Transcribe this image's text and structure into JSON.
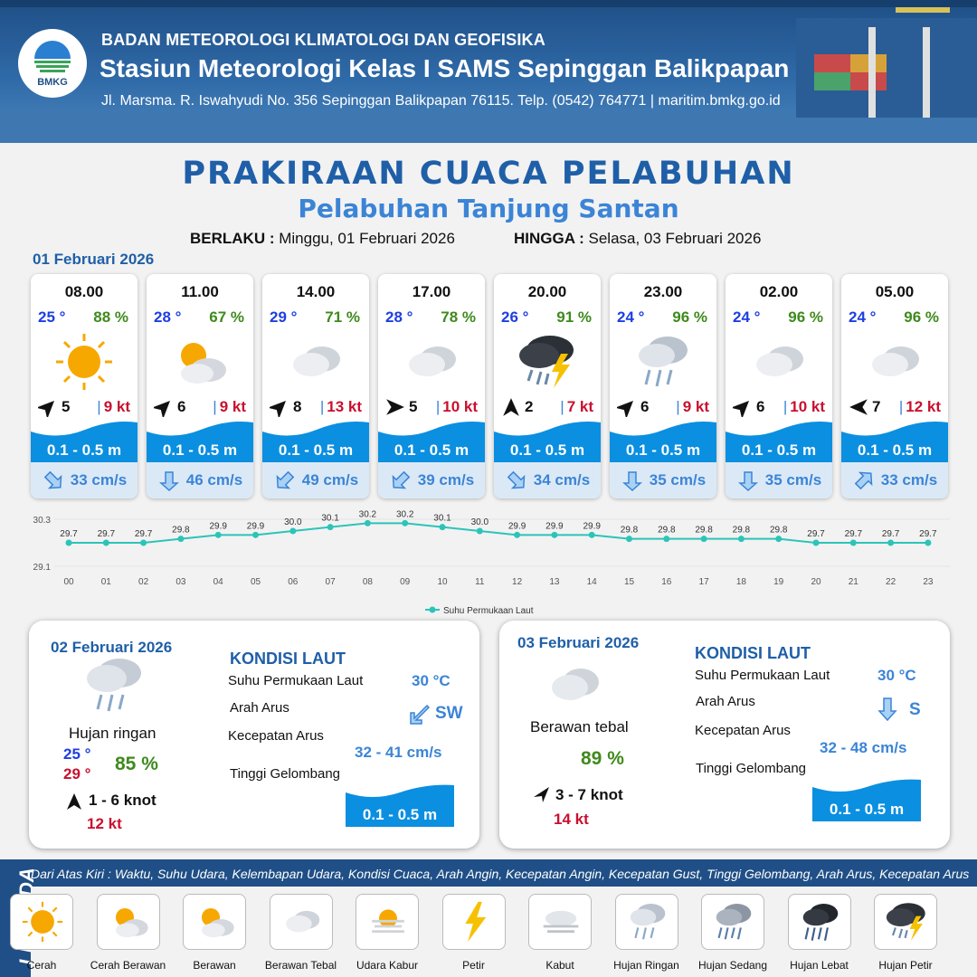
{
  "header": {
    "agency": "BADAN METEOROLOGI KLIMATOLOGI DAN GEOFISIKA",
    "station": "Stasiun Meteorologi Kelas I SAMS Sepinggan Balikpapan",
    "address": "Jl. Marsma. R. Iswahyudi No. 356 Sepinggan Balikpapan 76115. Telp. (0542) 764771 | maritim.bmkg.go.id",
    "logo_text": "BMKG"
  },
  "title": "PRAKIRAAN CUACA PELABUHAN",
  "subtitle": "Pelabuhan Tanjung Santan",
  "validity": {
    "from_label": "BERLAKU :",
    "from_value": "Minggu, 01 Februari 2026",
    "to_label": "HINGGA :",
    "to_value": "Selasa, 03 Februari 2026"
  },
  "day1_label": "01 Februari 2026",
  "cards": [
    {
      "time": "08.00",
      "temp": "25 °",
      "hum": "88 %",
      "icon": "sun-icon",
      "wind_dir": "ne",
      "wind": "5",
      "gust": "9 kt",
      "wave": "0.1 - 0.5 m",
      "current_dir": "se",
      "current": "33 cm/s"
    },
    {
      "time": "11.00",
      "temp": "28 °",
      "hum": "67 %",
      "icon": "sun-cloud-icon",
      "wind_dir": "ne",
      "wind": "6",
      "gust": "9 kt",
      "wave": "0.1 - 0.5 m",
      "current_dir": "s",
      "current": "46 cm/s"
    },
    {
      "time": "14.00",
      "temp": "29 °",
      "hum": "71 %",
      "icon": "cloud-icon",
      "wind_dir": "ne",
      "wind": "8",
      "gust": "13 kt",
      "wave": "0.1 - 0.5 m",
      "current_dir": "sw",
      "current": "49 cm/s"
    },
    {
      "time": "17.00",
      "temp": "28 °",
      "hum": "78 %",
      "icon": "cloud-icon",
      "wind_dir": "e",
      "wind": "5",
      "gust": "10 kt",
      "wave": "0.1 - 0.5 m",
      "current_dir": "sw",
      "current": "39 cm/s"
    },
    {
      "time": "20.00",
      "temp": "26 °",
      "hum": "91 %",
      "icon": "thunder-rain-icon",
      "wind_dir": "n",
      "wind": "2",
      "gust": "7 kt",
      "wave": "0.1 - 0.5 m",
      "current_dir": "se",
      "current": "34 cm/s"
    },
    {
      "time": "23.00",
      "temp": "24 °",
      "hum": "96 %",
      "icon": "light-rain-icon",
      "wind_dir": "ne",
      "wind": "6",
      "gust": "9 kt",
      "wave": "0.1 - 0.5 m",
      "current_dir": "s",
      "current": "35 cm/s"
    },
    {
      "time": "02.00",
      "temp": "24 °",
      "hum": "96 %",
      "icon": "cloud-icon",
      "wind_dir": "ne",
      "wind": "6",
      "gust": "10 kt",
      "wave": "0.1 - 0.5 m",
      "current_dir": "s",
      "current": "35 cm/s"
    },
    {
      "time": "05.00",
      "temp": "24 °",
      "hum": "96 %",
      "icon": "cloud-icon",
      "wind_dir": "w",
      "wind": "7",
      "gust": "12 kt",
      "wave": "0.1 - 0.5 m",
      "current_dir": "ne",
      "current": "33 cm/s"
    }
  ],
  "chart_data": {
    "type": "line",
    "x": [
      "00",
      "01",
      "02",
      "03",
      "04",
      "05",
      "06",
      "07",
      "08",
      "09",
      "10",
      "11",
      "12",
      "13",
      "14",
      "15",
      "16",
      "17",
      "18",
      "19",
      "20",
      "21",
      "22",
      "23"
    ],
    "series": [
      {
        "name": "Suhu Permukaan Laut",
        "values": [
          29.7,
          29.7,
          29.7,
          29.8,
          29.9,
          29.9,
          30.0,
          30.1,
          30.2,
          30.2,
          30.1,
          30.0,
          29.9,
          29.9,
          29.9,
          29.8,
          29.8,
          29.8,
          29.8,
          29.8,
          29.7,
          29.7,
          29.7,
          29.7
        ]
      }
    ],
    "value_labels": [
      "29.7",
      "29.7",
      "29.7",
      "29.8",
      "29.9",
      "29.9",
      "30.0",
      "30.1",
      "30.2",
      "30.2",
      "30.1",
      "30.0",
      "29.9",
      "29.9",
      "29.9",
      "29.8",
      "29.8",
      "29.8",
      "29.8",
      "29.8",
      "29.7",
      "29.7",
      "29.7",
      "29.7"
    ],
    "yticks": [
      "30.3",
      "29.1"
    ],
    "ylim": [
      29.1,
      30.3
    ],
    "color": "#2cc4b8",
    "legend": "bottom"
  },
  "day2": {
    "date": "02 Februari 2026",
    "icon": "light-rain-icon",
    "condition": "Hujan ringan",
    "tmin": "25 °",
    "tmax": "29 °",
    "hum": "85 %",
    "wind": "1  - 6 knot",
    "gust": "12 kt",
    "kondisi": "KONDISI LAUT",
    "sst_label": "Suhu Permukaan Laut",
    "sst": "30 °C",
    "dir_label": "Arah Arus",
    "dir": "SW",
    "speed_label": "Kecepatan Arus",
    "speed": "32  - 41 cm/s",
    "wave_label": "Tinggi Gelombang",
    "wave": "0.1 - 0.5 m"
  },
  "day3": {
    "date": "03 Februari 2026",
    "icon": "cloud-icon",
    "condition": "Berawan tebal",
    "hum": "89 %",
    "wind": "3  - 7 knot",
    "gust": "14 kt",
    "kondisi": "KONDISI LAUT",
    "sst_label": "Suhu Permukaan Laut",
    "sst": "30 °C",
    "dir_label": "Arah Arus",
    "dir": "S",
    "speed_label": "Kecepatan Arus",
    "speed": "32  - 48 cm/s",
    "wave_label": "Tinggi Gelombang",
    "wave": "0.1 - 0.5 m"
  },
  "legend": {
    "title": "LEGENDA",
    "description": "Dari Atas Kiri : Waktu, Suhu Udara, Kelembapan Udara, Kondisi Cuaca, Arah Angin, Kecepatan Angin, Kecepatan Gust, Tinggi Gelombang, Arah Arus, Kecepatan Arus",
    "items": [
      {
        "label": "Cerah",
        "icon": "sun-icon"
      },
      {
        "label": "Cerah Berawan",
        "icon": "sun-cloud-icon"
      },
      {
        "label": "Berawan",
        "icon": "sun-cloud-icon"
      },
      {
        "label": "Berawan Tebal",
        "icon": "cloud-icon"
      },
      {
        "label": "Udara Kabur",
        "icon": "haze-icon"
      },
      {
        "label": "Petir",
        "icon": "lightning-icon"
      },
      {
        "label": "Kabut",
        "icon": "fog-icon"
      },
      {
        "label": "Hujan Ringan",
        "icon": "light-rain-icon"
      },
      {
        "label": "Hujan Sedang",
        "icon": "moderate-rain-icon"
      },
      {
        "label": "Hujan Lebat",
        "icon": "heavy-rain-icon"
      },
      {
        "label": "Hujan Petir",
        "icon": "thunder-rain-icon"
      }
    ]
  }
}
